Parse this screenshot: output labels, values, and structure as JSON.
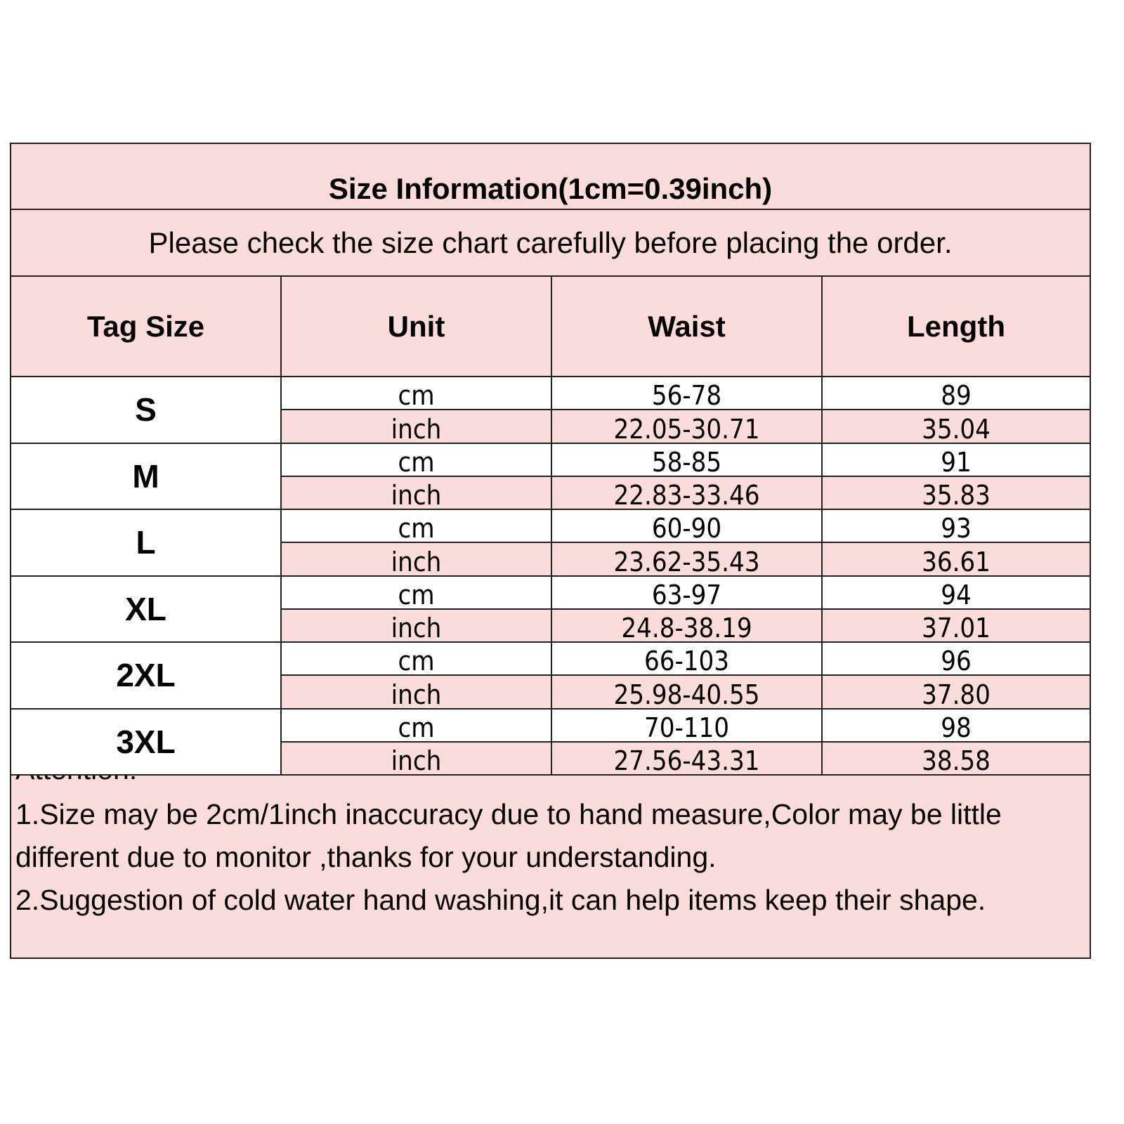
{
  "title": "Size Information(1cm=0.39inch)",
  "subtitle": "Please check the size chart carefully before placing the order.",
  "headers": [
    "Tag Size",
    "Unit",
    "Waist",
    "Length"
  ],
  "rows": [
    {
      "size": "S",
      "cm": {
        "unit": "cm",
        "waist": "56-78",
        "length": "89"
      },
      "inch": {
        "unit": "inch",
        "waist": "22.05-30.71",
        "length": "35.04"
      }
    },
    {
      "size": "M",
      "cm": {
        "unit": "cm",
        "waist": "58-85",
        "length": "91"
      },
      "inch": {
        "unit": "inch",
        "waist": "22.83-33.46",
        "length": "35.83"
      }
    },
    {
      "size": "L",
      "cm": {
        "unit": "cm",
        "waist": "60-90",
        "length": "93"
      },
      "inch": {
        "unit": "inch",
        "waist": "23.62-35.43",
        "length": "36.61"
      }
    },
    {
      "size": "XL",
      "cm": {
        "unit": "cm",
        "waist": "63-97",
        "length": "94"
      },
      "inch": {
        "unit": "inch",
        "waist": "24.8-38.19",
        "length": "37.01"
      }
    },
    {
      "size": "2XL",
      "cm": {
        "unit": "cm",
        "waist": "66-103",
        "length": "96"
      },
      "inch": {
        "unit": "inch",
        "waist": "25.98-40.55",
        "length": "37.80"
      }
    },
    {
      "size": "3XL",
      "cm": {
        "unit": "cm",
        "waist": "70-110",
        "length": "98"
      },
      "inch": {
        "unit": "inch",
        "waist": "27.56-43.31",
        "length": "38.58"
      }
    }
  ],
  "notes": {
    "heading": "Attention:",
    "items": [
      "1.Size may be 2cm/1inch inaccuracy due to hand measure,Color may be little different due to monitor ,thanks for your understanding.",
      "2.Suggestion of cold water hand washing,it can help items keep their shape."
    ]
  },
  "colors": {
    "pink": "#fcdcdb",
    "border": "#222222"
  }
}
